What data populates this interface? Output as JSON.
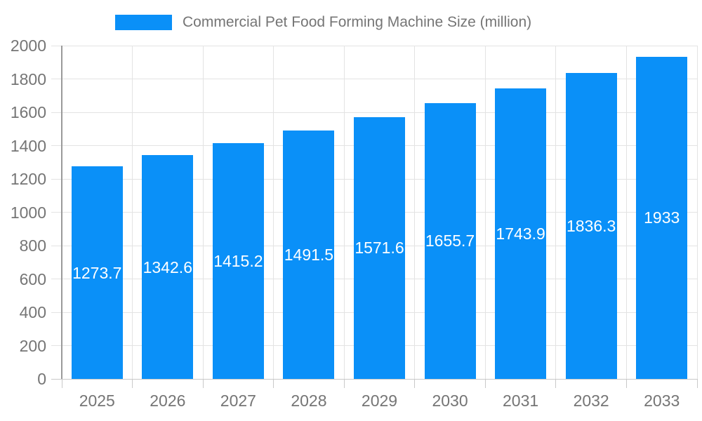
{
  "legend": {
    "swatch_color": "#0a90f8",
    "label": "Commercial Pet Food Forming Machine Size (million)"
  },
  "chart_data": {
    "type": "bar",
    "title": "Commercial Pet Food Forming Machine Size (million)",
    "categories": [
      "2025",
      "2026",
      "2027",
      "2028",
      "2029",
      "2030",
      "2031",
      "2032",
      "2033"
    ],
    "values": [
      1273.7,
      1342.6,
      1415.2,
      1491.5,
      1571.6,
      1655.7,
      1743.9,
      1836.3,
      1933
    ],
    "value_labels": [
      "1273.7",
      "1342.6",
      "1415.2",
      "1491.5",
      "1571.6",
      "1655.7",
      "1743.9",
      "1836.3",
      "1933"
    ],
    "xlabel": "",
    "ylabel": "",
    "ylim": [
      0,
      2000
    ],
    "yticks": [
      0,
      200,
      400,
      600,
      800,
      1000,
      1200,
      1400,
      1600,
      1800,
      2000
    ],
    "bar_color": "#0a90f8",
    "value_label_color": "#ffffff",
    "axis_text_color": "#757575",
    "grid": true,
    "legend_position": "top"
  }
}
